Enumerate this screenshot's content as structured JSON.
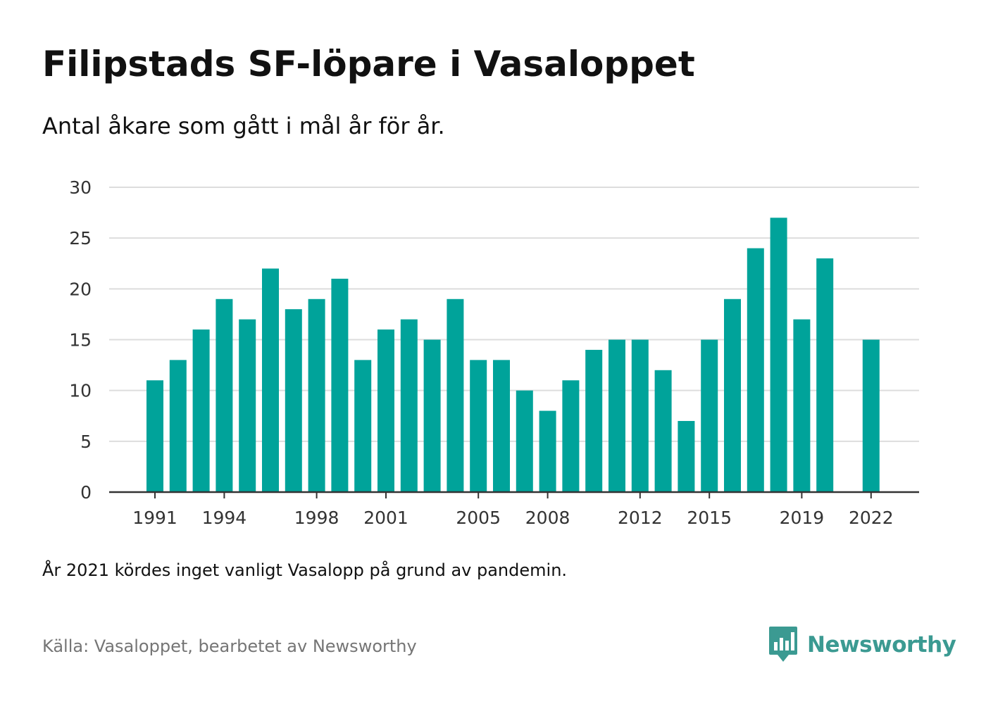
{
  "title": "Filipstads SF-löpare i Vasaloppet",
  "subtitle": "Antal åkare som gått i mål år för år.",
  "note": "År 2021 kördes inget vanligt Vasalopp på grund av pandemin.",
  "source": "Källa: Vasaloppet, bearbetet av Newsworthy",
  "brand": {
    "name": "Newsworthy",
    "color": "#3b9a92"
  },
  "colors": {
    "bar": "#00a39a",
    "grid": "#dddddd",
    "axis": "#333333"
  },
  "chart_data": {
    "type": "bar",
    "title": "Filipstads SF-löpare i Vasaloppet",
    "subtitle": "Antal åkare som gått i mål år för år.",
    "xlabel": "",
    "ylabel": "",
    "ylim": [
      0,
      30
    ],
    "yticks": [
      0,
      5,
      10,
      15,
      20,
      25,
      30
    ],
    "xtick_labels": [
      1991,
      1994,
      1998,
      2001,
      2005,
      2008,
      2012,
      2015,
      2019,
      2022
    ],
    "grid": true,
    "x": [
      1991,
      1992,
      1993,
      1994,
      1995,
      1996,
      1997,
      1998,
      1999,
      2000,
      2001,
      2002,
      2003,
      2004,
      2005,
      2006,
      2007,
      2008,
      2009,
      2010,
      2011,
      2012,
      2013,
      2014,
      2015,
      2016,
      2017,
      2018,
      2019,
      2020,
      2021,
      2022
    ],
    "values": [
      11,
      13,
      16,
      19,
      17,
      22,
      18,
      19,
      21,
      13,
      16,
      17,
      15,
      19,
      13,
      13,
      10,
      8,
      11,
      14,
      15,
      15,
      12,
      7,
      15,
      19,
      24,
      27,
      17,
      23,
      null,
      15
    ]
  }
}
